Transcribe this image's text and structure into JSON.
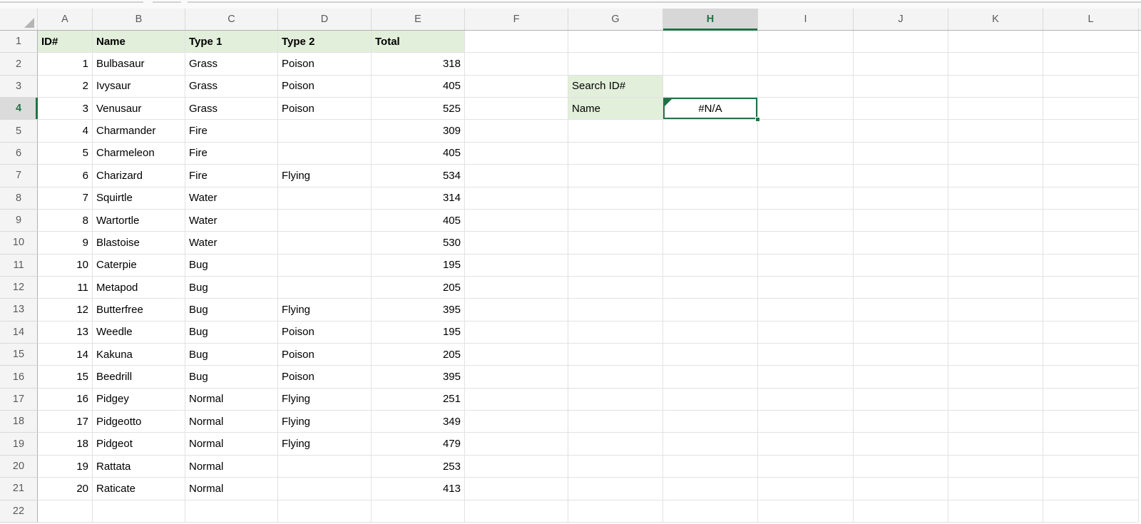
{
  "grid": {
    "column_letters": [
      "A",
      "B",
      "C",
      "D",
      "E",
      "F",
      "G",
      "H",
      "I",
      "J",
      "K",
      "L"
    ],
    "row_numbers": [
      "1",
      "2",
      "3",
      "4",
      "5",
      "6",
      "7",
      "8",
      "9",
      "10",
      "11",
      "12",
      "13",
      "14",
      "15",
      "16",
      "17",
      "18",
      "19",
      "20",
      "21",
      "22"
    ],
    "selected_cell": "H4",
    "selected_column": "H",
    "selected_row": "4"
  },
  "sheet": {
    "columns_header": {
      "cells": [
        {
          "col": "A",
          "text": "ID#"
        },
        {
          "col": "B",
          "text": "Name"
        },
        {
          "col": "C",
          "text": "Type 1"
        },
        {
          "col": "D",
          "text": "Type 2"
        },
        {
          "col": "E",
          "text": "Total"
        }
      ]
    },
    "pokemon": [
      {
        "id": "1",
        "name": "Bulbasaur",
        "type1": "Grass",
        "type2": "Poison",
        "total": "318"
      },
      {
        "id": "2",
        "name": "Ivysaur",
        "type1": "Grass",
        "type2": "Poison",
        "total": "405"
      },
      {
        "id": "3",
        "name": "Venusaur",
        "type1": "Grass",
        "type2": "Poison",
        "total": "525"
      },
      {
        "id": "4",
        "name": "Charmander",
        "type1": "Fire",
        "type2": "",
        "total": "309"
      },
      {
        "id": "5",
        "name": "Charmeleon",
        "type1": "Fire",
        "type2": "",
        "total": "405"
      },
      {
        "id": "6",
        "name": "Charizard",
        "type1": "Fire",
        "type2": "Flying",
        "total": "534"
      },
      {
        "id": "7",
        "name": "Squirtle",
        "type1": "Water",
        "type2": "",
        "total": "314"
      },
      {
        "id": "8",
        "name": "Wartortle",
        "type1": "Water",
        "type2": "",
        "total": "405"
      },
      {
        "id": "9",
        "name": "Blastoise",
        "type1": "Water",
        "type2": "",
        "total": "530"
      },
      {
        "id": "10",
        "name": "Caterpie",
        "type1": "Bug",
        "type2": "",
        "total": "195"
      },
      {
        "id": "11",
        "name": "Metapod",
        "type1": "Bug",
        "type2": "",
        "total": "205"
      },
      {
        "id": "12",
        "name": "Butterfree",
        "type1": "Bug",
        "type2": "Flying",
        "total": "395"
      },
      {
        "id": "13",
        "name": "Weedle",
        "type1": "Bug",
        "type2": "Poison",
        "total": "195"
      },
      {
        "id": "14",
        "name": "Kakuna",
        "type1": "Bug",
        "type2": "Poison",
        "total": "205"
      },
      {
        "id": "15",
        "name": "Beedrill",
        "type1": "Bug",
        "type2": "Poison",
        "total": "395"
      },
      {
        "id": "16",
        "name": "Pidgey",
        "type1": "Normal",
        "type2": "Flying",
        "total": "251"
      },
      {
        "id": "17",
        "name": "Pidgeotto",
        "type1": "Normal",
        "type2": "Flying",
        "total": "349"
      },
      {
        "id": "18",
        "name": "Pidgeot",
        "type1": "Normal",
        "type2": "Flying",
        "total": "479"
      },
      {
        "id": "19",
        "name": "Rattata",
        "type1": "Normal",
        "type2": "",
        "total": "253"
      },
      {
        "id": "20",
        "name": "Raticate",
        "type1": "Normal",
        "type2": "",
        "total": "413"
      }
    ],
    "lookup": {
      "search_label": "Search ID#",
      "name_label": "Name",
      "result_value": "#N/A"
    }
  },
  "colors": {
    "accent_green": "#217346",
    "header_fill_green": "#e2efda",
    "selected_header_bg": "#d7d7d7",
    "gridline": "#e2e2e2"
  },
  "icons": {
    "select_all": "select-all-triangle",
    "error_indicator": "error-corner-triangle",
    "fill_handle": "fill-handle-square"
  }
}
